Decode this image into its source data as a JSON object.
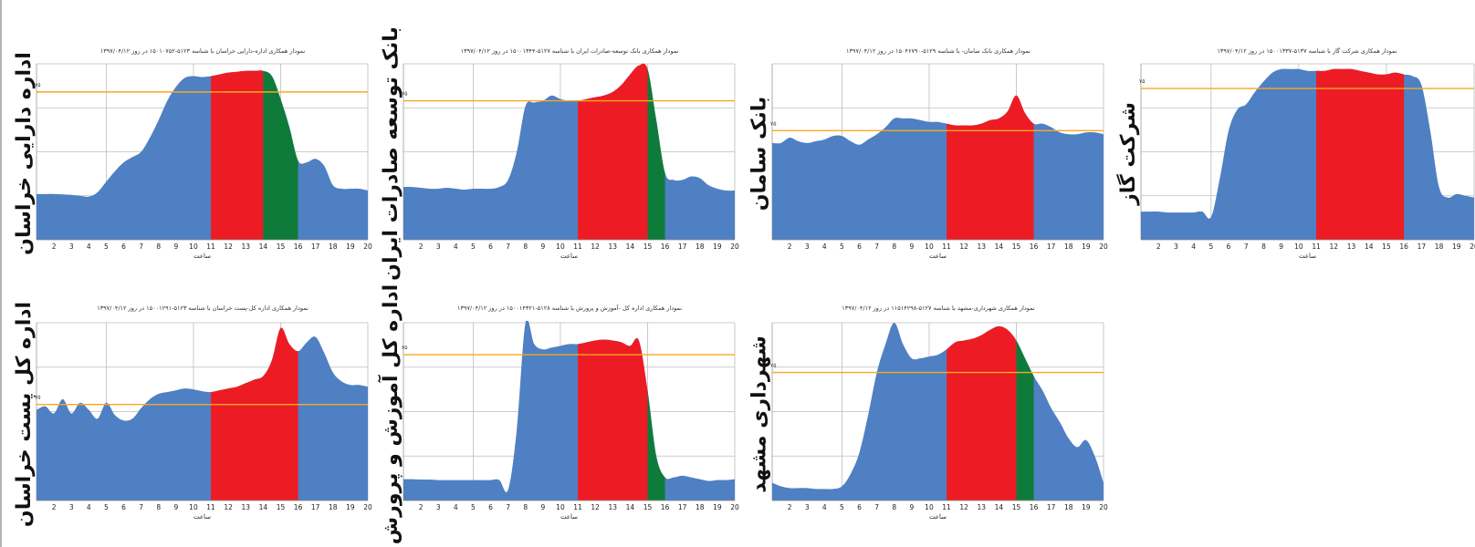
{
  "chart_data": [
    {
      "type": "area",
      "title": "نمودار همکاری  اداره-دارایی خراسان با شناسه ۵۱۲۳-۱۵۰۱۰۷۵۲ در روز ۱۳۹۷/۰۴/۱۲",
      "side_label": "اداره دارایی خراسان",
      "xlabel": "ساعت",
      "threshold_label": "۷۵",
      "x": [
        1,
        1.5,
        2,
        2.5,
        3,
        3.5,
        4,
        4.5,
        5,
        5.5,
        6,
        6.5,
        7,
        7.5,
        8,
        8.5,
        9,
        9.5,
        10,
        10.5,
        11,
        11.5,
        12,
        12.5,
        13,
        13.5,
        14,
        14.5,
        15,
        15.5,
        16,
        16.5,
        17,
        17.5,
        18,
        18.5,
        19,
        19.5,
        20
      ],
      "y": [
        26,
        26,
        26,
        25.8,
        25.5,
        25,
        24.5,
        27,
        33,
        39,
        44,
        47,
        50,
        58,
        68,
        79,
        87,
        92,
        93,
        92.5,
        93,
        94,
        95,
        95.5,
        96,
        96,
        96,
        93,
        80,
        64,
        45,
        44,
        46,
        42,
        31,
        29,
        29,
        29,
        28
      ],
      "threshold": 84,
      "ylim": [
        0,
        100
      ],
      "xlim": [
        1,
        20
      ],
      "xticks": [
        2,
        3,
        4,
        5,
        6,
        7,
        8,
        9,
        10,
        11,
        12,
        13,
        14,
        15,
        16,
        17,
        18,
        19,
        20
      ],
      "segments": [
        {
          "from": 11,
          "to": 14,
          "color": "#ed1c24"
        },
        {
          "from": 14,
          "to": 16,
          "color": "#0f7b3a"
        }
      ],
      "base_color": "#4f80c3",
      "threshold_color": "#f7a823"
    },
    {
      "type": "area",
      "title": "نمودار همکاری  بانک توسعه-صادرات ایران با شناسه ۵۱۲۷-۱۵۰۰۱۳۴۴ در روز ۱۳۹۷/۰۴/۱۲",
      "side_label": "بانک توسعه صادرات ایران",
      "xlabel": "ساعت",
      "threshold_label": "۷۵",
      "x": [
        1,
        1.5,
        2,
        2.5,
        3,
        3.5,
        4,
        4.5,
        5,
        5.5,
        6,
        6.5,
        7,
        7.5,
        8,
        8.5,
        9,
        9.5,
        10,
        10.5,
        11,
        11.5,
        12,
        12.5,
        13,
        13.5,
        14,
        14.5,
        15,
        15.5,
        16,
        16.5,
        17,
        17.5,
        18,
        18.5,
        19,
        19.5,
        20
      ],
      "y": [
        30,
        30,
        29.5,
        29,
        29,
        29.5,
        29,
        28.5,
        29,
        29,
        29,
        30,
        34,
        50,
        76,
        78,
        79,
        82,
        80,
        79,
        79,
        80,
        81,
        82,
        84,
        88,
        94,
        99,
        97,
        68,
        38,
        34,
        34,
        36,
        35,
        31,
        29,
        28,
        28
      ],
      "threshold": 79,
      "ylim": [
        0,
        100
      ],
      "xlim": [
        1,
        20
      ],
      "xticks": [
        2,
        3,
        4,
        5,
        6,
        7,
        8,
        9,
        10,
        11,
        12,
        13,
        14,
        15,
        16,
        17,
        18,
        19,
        20
      ],
      "segments": [
        {
          "from": 11,
          "to": 15,
          "color": "#ed1c24"
        },
        {
          "from": 15,
          "to": 16,
          "color": "#0f7b3a"
        }
      ],
      "base_color": "#4f80c3",
      "threshold_color": "#f7a823"
    },
    {
      "type": "area",
      "title": "نمودار همکاری  بانک سامان- با شناسه ۵۱۲۹-۱۵۰۴۶۷۹۰ در روز ۱۳۹۷/۰۴/۱۲",
      "side_label": "بانک سامان",
      "xlabel": "ساعت",
      "threshold_label": "۷۵",
      "x": [
        1,
        1.5,
        2,
        2.5,
        3,
        3.5,
        4,
        4.5,
        5,
        5.5,
        6,
        6.5,
        7,
        7.5,
        8,
        8.5,
        9,
        9.5,
        10,
        10.5,
        11,
        11.5,
        12,
        12.5,
        13,
        13.5,
        14,
        14.5,
        15,
        15.5,
        16,
        16.5,
        17,
        17.5,
        18,
        18.5,
        19,
        19.5,
        20
      ],
      "y": [
        55,
        55,
        58,
        56,
        55,
        56,
        57,
        59,
        59,
        56,
        54,
        57,
        60,
        64,
        69,
        69,
        69,
        68,
        67,
        67,
        66,
        65,
        65,
        65,
        66,
        68,
        69,
        73,
        82,
        72,
        66,
        66,
        64,
        61,
        60,
        60,
        61,
        61,
        60
      ],
      "threshold": 62,
      "ylim": [
        0,
        100
      ],
      "xlim": [
        1,
        20
      ],
      "xticks": [
        2,
        3,
        4,
        5,
        6,
        7,
        8,
        9,
        10,
        11,
        12,
        13,
        14,
        15,
        16,
        17,
        18,
        19,
        20
      ],
      "segments": [
        {
          "from": 11,
          "to": 16,
          "color": "#ed1c24"
        }
      ],
      "base_color": "#4f80c3",
      "threshold_color": "#f7a823"
    },
    {
      "type": "area",
      "title": "نمودار همکاری  شرکت گاز با شناسه ۵۱۳۷-۱۵۰۰۱۳۳۷ در روز ۱۳۹۷/۰۴/۱۲",
      "side_label": "شرکت گاز",
      "xlabel": "ساعت",
      "threshold_label": "۷۵",
      "x": [
        1,
        1.5,
        2,
        2.5,
        3,
        3.5,
        4,
        4.5,
        5,
        5.5,
        6,
        6.5,
        7,
        7.5,
        8,
        8.5,
        9,
        9.5,
        10,
        10.5,
        11,
        11.5,
        12,
        12.5,
        13,
        13.5,
        14,
        14.5,
        15,
        15.5,
        16,
        16.5,
        17,
        17.5,
        18,
        18.5,
        19,
        19.5,
        20
      ],
      "y": [
        16,
        16,
        16,
        15.5,
        15.5,
        15.5,
        15.5,
        16,
        13,
        35,
        62,
        74,
        77,
        84,
        90,
        95,
        97,
        97,
        97,
        96,
        96,
        96,
        97,
        97,
        97,
        96,
        95,
        94,
        94,
        95,
        94,
        93,
        88,
        62,
        30,
        24,
        26,
        25,
        24
      ],
      "threshold": 86,
      "ylim": [
        0,
        100
      ],
      "xlim": [
        1,
        20
      ],
      "xticks": [
        2,
        3,
        4,
        5,
        6,
        7,
        8,
        9,
        10,
        11,
        12,
        13,
        14,
        15,
        16,
        17,
        18,
        19,
        20
      ],
      "segments": [
        {
          "from": 11,
          "to": 16,
          "color": "#ed1c24"
        }
      ],
      "base_color": "#4f80c3",
      "threshold_color": "#f7a823"
    },
    {
      "type": "area",
      "title": "نمودار همکاری  اداره کل-پست خراسان با شناسه ۵۱۲۳-۱۵۰۰۱۲۹۱ در روز ۱۳۹۷/۰۴/۱۲",
      "side_label": "اداره کل پست خراسان",
      "xlabel": "ساعت",
      "threshold_label": "۷۵",
      "x": [
        1,
        1.5,
        2,
        2.5,
        3,
        3.5,
        4,
        4.5,
        5,
        5.5,
        6,
        6.5,
        7,
        7.5,
        8,
        8.5,
        9,
        9.5,
        10,
        10.5,
        11,
        11.5,
        12,
        12.5,
        13,
        13.5,
        14,
        14.5,
        15,
        15.5,
        16,
        16.5,
        17,
        17.5,
        18,
        18.5,
        19,
        19.5,
        20
      ],
      "y": [
        51,
        53,
        49,
        57,
        49,
        55,
        51,
        46,
        55,
        48,
        45,
        46,
        52,
        57,
        60,
        61,
        62,
        63,
        62.5,
        61.5,
        61,
        62,
        63,
        64,
        66,
        68,
        70,
        79,
        97,
        88,
        84,
        89,
        92,
        83,
        72,
        67,
        65,
        65,
        64
      ],
      "threshold": 54,
      "ylim": [
        0,
        100
      ],
      "xlim": [
        1,
        20
      ],
      "xticks": [
        2,
        3,
        4,
        5,
        6,
        7,
        8,
        9,
        10,
        11,
        12,
        13,
        14,
        15,
        16,
        17,
        18,
        19,
        20
      ],
      "segments": [
        {
          "from": 11,
          "to": 16,
          "color": "#ed1c24"
        }
      ],
      "base_color": "#4f80c3",
      "threshold_color": "#f7a823"
    },
    {
      "type": "area",
      "title": "نمودار همکاری  اداره کل -آموزش و پرورش با شناسه ۵۱۲۸-۱۵۰۰۱۴۳۲۱ در روز ۱۳۹۷/۰۴/۱۲",
      "side_label": "اداره کل آموزش و پرورش",
      "xlabel": "ساعت",
      "threshold_label": "۷۵",
      "x": [
        1,
        1.5,
        2,
        2.5,
        3,
        3.5,
        4,
        4.5,
        5,
        5.5,
        6,
        6.5,
        7,
        7.5,
        8,
        8.5,
        9,
        9.5,
        10,
        10.5,
        11,
        11.5,
        12,
        12.5,
        13,
        13.5,
        14,
        14.5,
        15,
        15.5,
        16,
        16.5,
        17,
        17.5,
        18,
        18.5,
        19,
        19.5,
        20
      ],
      "y": [
        12,
        12,
        11.8,
        11.8,
        11.5,
        11.5,
        11.5,
        11.5,
        11.5,
        11.5,
        11.5,
        11.5,
        6,
        40,
        100,
        88,
        85,
        86,
        87,
        88,
        88,
        89,
        90,
        90.5,
        90,
        89,
        87,
        90,
        62,
        25,
        13,
        13,
        14,
        13,
        12,
        11,
        11.5,
        11.5,
        12
      ],
      "threshold": 82,
      "ylim": [
        0,
        100
      ],
      "xlim": [
        1,
        20
      ],
      "xticks": [
        2,
        3,
        4,
        5,
        6,
        7,
        8,
        9,
        10,
        11,
        12,
        13,
        14,
        15,
        16,
        17,
        18,
        19,
        20
      ],
      "segments": [
        {
          "from": 11,
          "to": 15,
          "color": "#ed1c24"
        },
        {
          "from": 15,
          "to": 16,
          "color": "#0f7b3a"
        }
      ],
      "base_color": "#4f80c3",
      "threshold_color": "#f7a823"
    },
    {
      "type": "area",
      "title": "نمودار همکاری  شهرداری-مشهد با شناسه ۵۱۲۷-۱۱۵۱۴۲۹۸ در روز ۱۳۹۷/۰۴/۱۲",
      "side_label": "شهرداری مشهد",
      "xlabel": "ساعت",
      "threshold_label": "۷۵",
      "x": [
        1,
        1.5,
        2,
        2.5,
        3,
        3.5,
        4,
        4.5,
        5,
        5.5,
        6,
        6.5,
        7,
        7.5,
        8,
        8.5,
        9,
        9.5,
        10,
        10.5,
        11,
        11.5,
        12,
        12.5,
        13,
        13.5,
        14,
        14.5,
        15,
        15.5,
        16,
        16.5,
        17,
        17.5,
        18,
        18.5,
        19,
        19.5,
        20
      ],
      "y": [
        10,
        8,
        7,
        7,
        7,
        6.5,
        6.5,
        6.5,
        8,
        15,
        27,
        48,
        72,
        88,
        100,
        88,
        80,
        80,
        81,
        82,
        85,
        89,
        90,
        91,
        93,
        96,
        98,
        96,
        90,
        80,
        70,
        62,
        52,
        44,
        35,
        30,
        34,
        25,
        10
      ],
      "threshold": 72,
      "ylim": [
        0,
        100
      ],
      "xlim": [
        1,
        20
      ],
      "xticks": [
        2,
        3,
        4,
        5,
        6,
        7,
        8,
        9,
        10,
        11,
        12,
        13,
        14,
        15,
        16,
        17,
        18,
        19,
        20
      ],
      "segments": [
        {
          "from": 11,
          "to": 15,
          "color": "#ed1c24"
        },
        {
          "from": 15,
          "to": 16,
          "color": "#0f7b3a"
        }
      ],
      "base_color": "#4f80c3",
      "threshold_color": "#f7a823"
    }
  ]
}
